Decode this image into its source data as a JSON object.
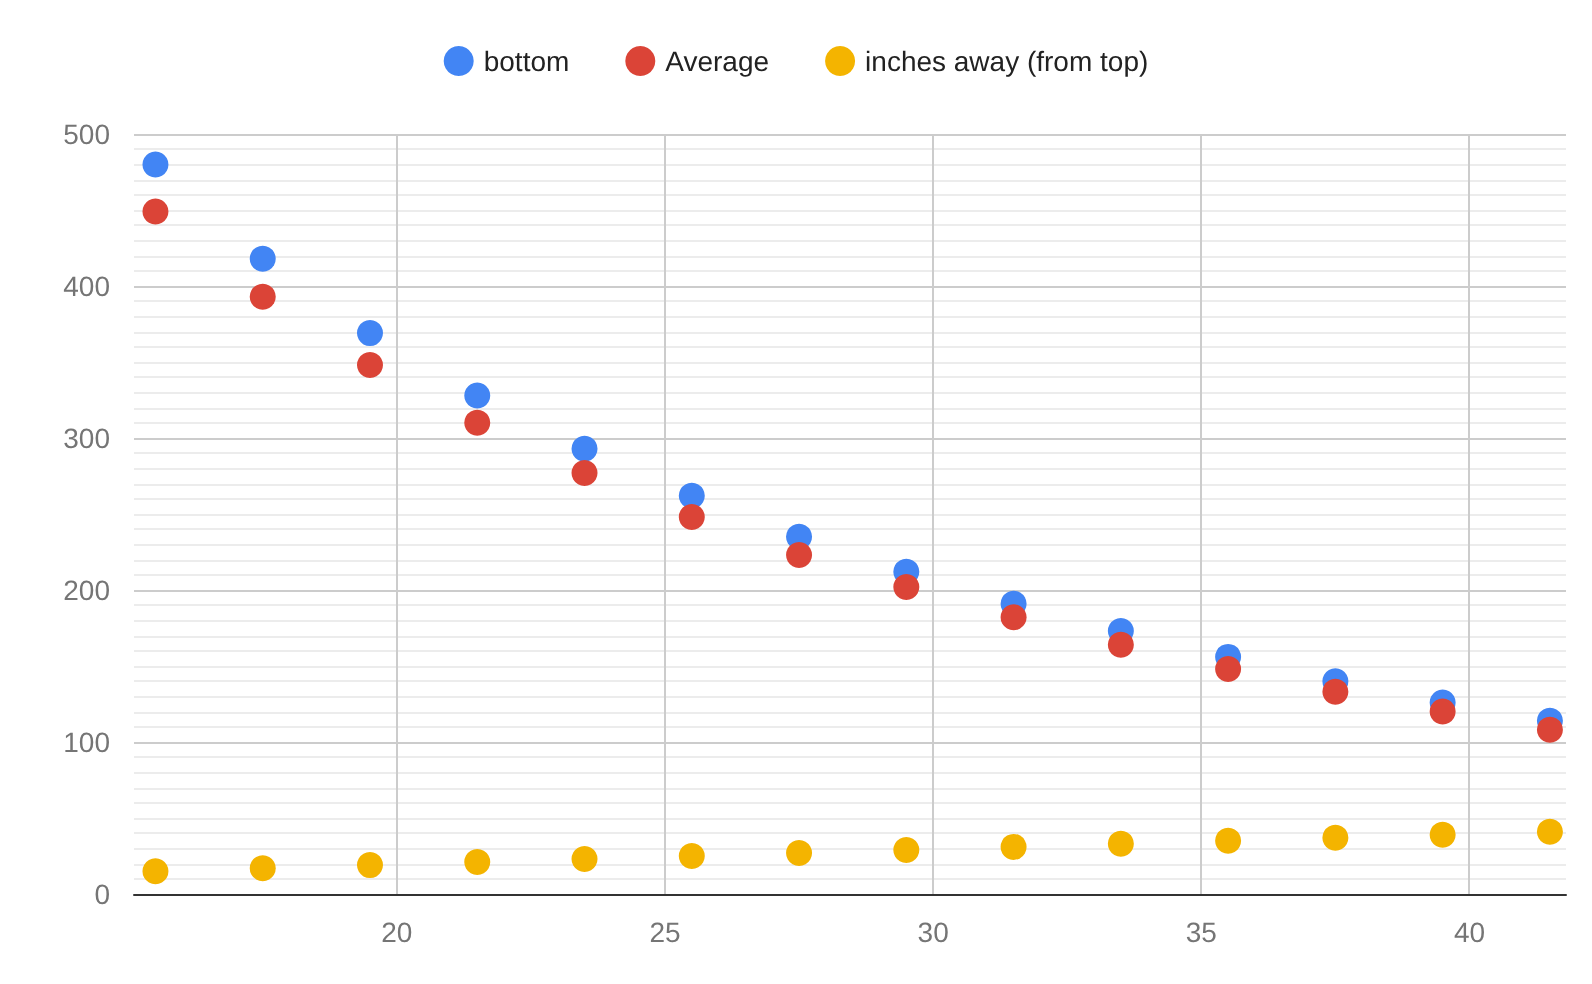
{
  "chart_data": {
    "type": "scatter",
    "x": [
      15.5,
      17.5,
      19.5,
      21.5,
      23.5,
      25.5,
      27.5,
      29.5,
      31.5,
      33.5,
      35.5,
      37.5,
      39.5,
      41.5
    ],
    "series": [
      {
        "name": "bottom",
        "color": "#4285f4",
        "values": [
          480,
          418,
          369,
          328,
          293,
          262,
          235,
          212,
          191,
          173,
          156,
          140,
          126,
          114
        ]
      },
      {
        "name": "Average",
        "color": "#db4437",
        "values": [
          449,
          393,
          348,
          310,
          277,
          248,
          223,
          202,
          182,
          164,
          148,
          133,
          120,
          108
        ]
      },
      {
        "name": "inches away (from top)",
        "color": "#f4b400",
        "values": [
          15,
          17,
          19,
          21,
          23,
          25,
          27,
          29,
          31,
          33,
          35,
          37,
          39,
          41
        ]
      }
    ],
    "xlim": [
      15.1,
      41.8
    ],
    "xticks": [
      20,
      25,
      30,
      35,
      40
    ],
    "ylim": [
      0,
      500
    ],
    "yticks": [
      0,
      100,
      200,
      300,
      400,
      500
    ],
    "grid": true,
    "legend": "top",
    "marker": "circle"
  }
}
